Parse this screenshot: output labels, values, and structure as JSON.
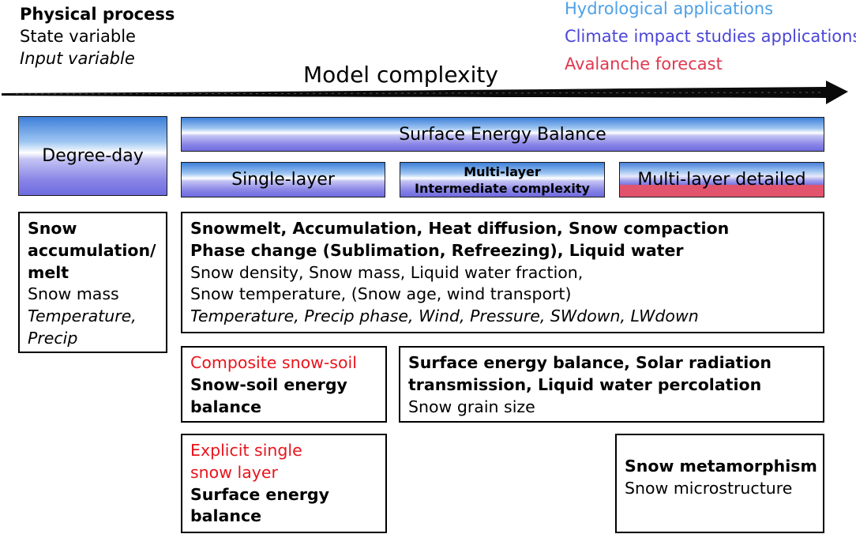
{
  "legend": {
    "left": {
      "physical_process": "Physical process",
      "state_variable": "State variable",
      "input_variable": "Input variable"
    },
    "right": {
      "hydrological": "Hydrological applications",
      "climate": "Climate impact studies applications",
      "avalanche": "Avalanche forecast"
    },
    "colors": {
      "hydrological": "#4fa0e6",
      "climate": "#4b46d8",
      "avalanche": "#e0384f",
      "composite": "#e8141c"
    }
  },
  "axis": {
    "title": "Model complexity"
  },
  "models": {
    "degree_day": "Degree-day",
    "surface_energy_balance": "Surface Energy Balance",
    "single_layer": "Single-layer",
    "multi_layer_line1": "Multi-layer",
    "multi_layer_line2": "Intermediate complexity",
    "multi_layer_detailed": "Multi-layer detailed"
  },
  "boxes": {
    "degree_day": {
      "process": [
        "Snow",
        "accumulation/",
        "melt"
      ],
      "state": "Snow mass",
      "inputs": [
        "Temperature,",
        "Precip"
      ]
    },
    "seb": {
      "process": [
        "Snowmelt, Accumulation, Heat diffusion, Snow compaction",
        "Phase change (Sublimation, Refreezing), Liquid water"
      ],
      "state": [
        "Snow density, Snow mass, Liquid water fraction,",
        "Snow temperature, (Snow age, wind transport)"
      ],
      "inputs": [
        "Temperature, Precip phase, Wind, Pressure, SWdown, LWdown"
      ]
    },
    "composite": {
      "title": "Composite snow-soil",
      "process": [
        "Snow-soil energy",
        "balance"
      ]
    },
    "intermediate": {
      "process": [
        "Surface energy balance, Solar radiation",
        "transmission, Liquid water percolation"
      ],
      "state": "Snow grain size"
    },
    "explicit": {
      "title": [
        "Explicit single",
        "snow layer"
      ],
      "process": [
        "Surface energy",
        "balance"
      ]
    },
    "detailed": {
      "process": "Snow metamorphism",
      "state": "Snow microstructure"
    }
  }
}
